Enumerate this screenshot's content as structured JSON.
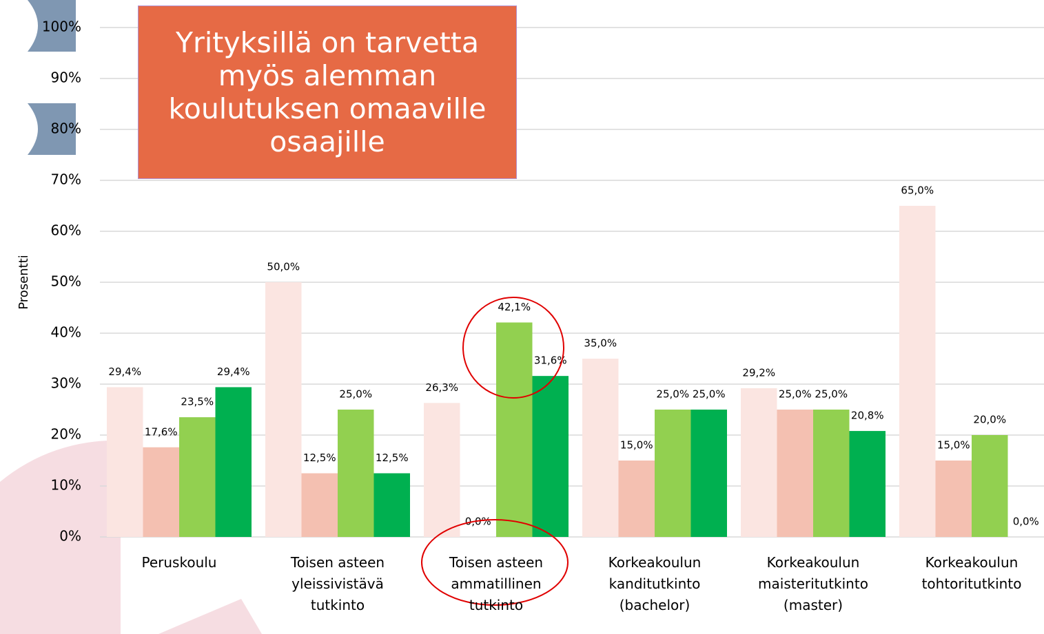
{
  "chart_data": {
    "type": "bar",
    "annotation": "Yrityksillä on tarvetta myös alemman koulutuksen omaaville osaajille",
    "y_label": "Prosentti",
    "categories": [
      "Peruskoulu",
      "Toisen asteen yleissivistävä tutkinto",
      "Toisen asteen ammatillinen tutkinto",
      "Korkeakoulun kanditutkinto (bachelor)",
      "Korkeakoulun maisteritutkinto (master)",
      "Korkeakoulun tohtoritutkinto"
    ],
    "series": [
      {
        "color": "#fbe5e1",
        "values": [
          29.4,
          50.0,
          26.3,
          35.0,
          29.2,
          65.0
        ],
        "value_labels": [
          "29,4%",
          "50,0%",
          "26,3%",
          "35,0%",
          "29,2%",
          "65,0%"
        ]
      },
      {
        "color": "#f4c0b1",
        "values": [
          17.6,
          12.5,
          0.0,
          15.0,
          25.0,
          15.0
        ],
        "value_labels": [
          "17,6%",
          "12,5%",
          "0,0%",
          "15,0%",
          "25,0%",
          "15,0%"
        ]
      },
      {
        "color": "#92d050",
        "values": [
          23.5,
          25.0,
          42.1,
          25.0,
          25.0,
          20.0
        ],
        "value_labels": [
          "23,5%",
          "25,0%",
          "42,1%",
          "25,0%",
          "25,0%",
          "20,0%"
        ]
      },
      {
        "color": "#00b050",
        "values": [
          29.4,
          12.5,
          31.6,
          25.0,
          20.8,
          0.0
        ],
        "value_labels": [
          "29,4%",
          "12,5%",
          "31,6%",
          "25,0%",
          "20,8%",
          "0,0%"
        ]
      }
    ],
    "ylim": [
      0,
      100
    ],
    "yticks": [
      {
        "value": 0,
        "label": "0%"
      },
      {
        "value": 10,
        "label": "10%"
      },
      {
        "value": 20,
        "label": "20%"
      },
      {
        "value": 30,
        "label": "30%"
      },
      {
        "value": 40,
        "label": "40%"
      },
      {
        "value": 50,
        "label": "50%"
      },
      {
        "value": 60,
        "label": "60%"
      },
      {
        "value": 70,
        "label": "70%"
      },
      {
        "value": 80,
        "label": "80%"
      },
      {
        "value": 90,
        "label": "90%"
      },
      {
        "value": 100,
        "label": "100%"
      }
    ],
    "grid": true
  }
}
